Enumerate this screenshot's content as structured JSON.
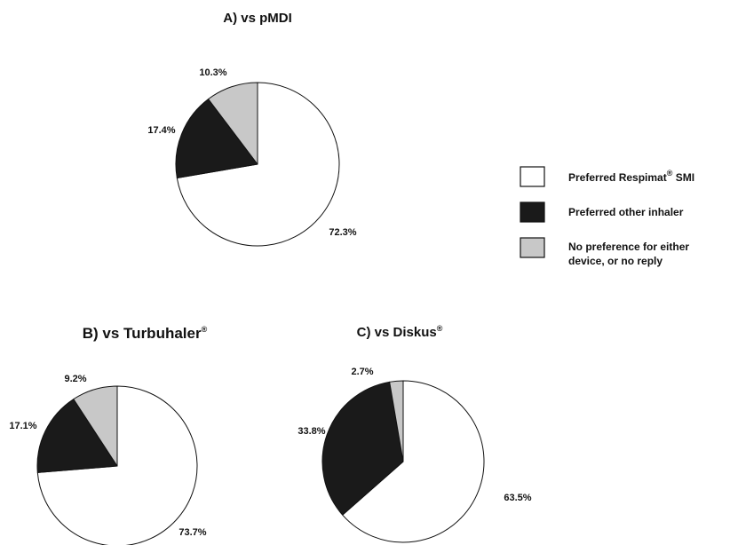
{
  "colors": {
    "respimat": "#ffffff",
    "other": "#1a1a1a",
    "none": "#c8c8c8",
    "stroke": "#111111"
  },
  "legend": {
    "respimat": {
      "label": "Preferred Respimat",
      "sup": "®",
      "suffix": " SMI",
      "color": "#ffffff"
    },
    "other": {
      "label": "Preferred other inhaler",
      "color": "#1a1a1a"
    },
    "none": {
      "line1": "No preference for either",
      "line2": "device, or no reply",
      "color": "#c8c8c8"
    }
  },
  "chart_data": [
    {
      "type": "pie",
      "title": "A) vs pMDI",
      "title_sup": "",
      "slices": [
        {
          "label": "Preferred Respimat SMI",
          "value": 72.3,
          "text": "72.3%",
          "color": "#ffffff"
        },
        {
          "label": "Preferred other inhaler",
          "value": 17.4,
          "text": "17.4%",
          "color": "#1a1a1a"
        },
        {
          "label": "No preference for either device, or no reply",
          "value": 10.3,
          "text": "10.3%",
          "color": "#c8c8c8"
        }
      ]
    },
    {
      "type": "pie",
      "title": "B) vs Turbuhaler",
      "title_sup": "®",
      "slices": [
        {
          "label": "Preferred Respimat SMI",
          "value": 73.7,
          "text": "73.7%",
          "color": "#ffffff"
        },
        {
          "label": "Preferred other inhaler",
          "value": 17.1,
          "text": "17.1%",
          "color": "#1a1a1a"
        },
        {
          "label": "No preference for either device, or no reply",
          "value": 9.2,
          "text": "9.2%",
          "color": "#c8c8c8"
        }
      ]
    },
    {
      "type": "pie",
      "title": "C) vs Diskus",
      "title_sup": "®",
      "slices": [
        {
          "label": "Preferred Respimat SMI",
          "value": 63.5,
          "text": "63.5%",
          "color": "#ffffff"
        },
        {
          "label": "Preferred other inhaler",
          "value": 33.8,
          "text": "33.8%",
          "color": "#1a1a1a"
        },
        {
          "label": "No preference for either device, or no reply",
          "value": 2.7,
          "text": "2.7%",
          "color": "#c8c8c8"
        }
      ]
    }
  ]
}
